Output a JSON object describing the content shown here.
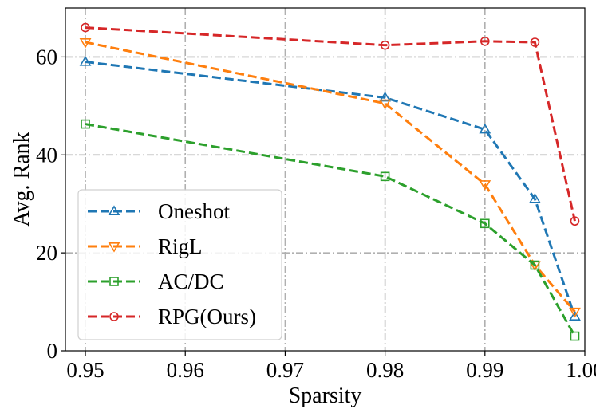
{
  "chart_data": {
    "type": "line",
    "xlabel": "Sparsity",
    "ylabel": "Avg. Rank",
    "xlim": [
      0.948,
      1.0
    ],
    "ylim": [
      0,
      70
    ],
    "xticks": [
      0.95,
      0.96,
      0.97,
      0.98,
      0.99,
      1.0
    ],
    "xtick_labels": [
      "0.95",
      "0.96",
      "0.97",
      "0.98",
      "0.99",
      "1.00"
    ],
    "yticks": [
      0,
      20,
      40,
      60
    ],
    "ytick_labels": [
      "0",
      "20",
      "40",
      "60"
    ],
    "grid": true,
    "legend_position": "lower-left",
    "series": [
      {
        "name": "Oneshot",
        "color": "#1f77b4",
        "marker": "triangle-up",
        "x": [
          0.95,
          0.98,
          0.99,
          0.995,
          0.999
        ],
        "values": [
          59,
          51.7,
          45.2,
          31,
          7
        ]
      },
      {
        "name": "RigL",
        "color": "#ff7f0e",
        "marker": "triangle-down",
        "x": [
          0.95,
          0.98,
          0.99,
          0.995,
          0.999
        ],
        "values": [
          63,
          50.5,
          34,
          17.5,
          8
        ]
      },
      {
        "name": "AC/DC",
        "color": "#2ca02c",
        "marker": "square",
        "x": [
          0.95,
          0.98,
          0.99,
          0.995,
          0.999
        ],
        "values": [
          46.3,
          35.6,
          26,
          17.5,
          3
        ]
      },
      {
        "name": "RPG(Ours)",
        "color": "#d62728",
        "marker": "circle",
        "x": [
          0.95,
          0.98,
          0.99,
          0.995,
          0.999
        ],
        "values": [
          66,
          62.4,
          63.2,
          63,
          26.5
        ]
      }
    ]
  }
}
